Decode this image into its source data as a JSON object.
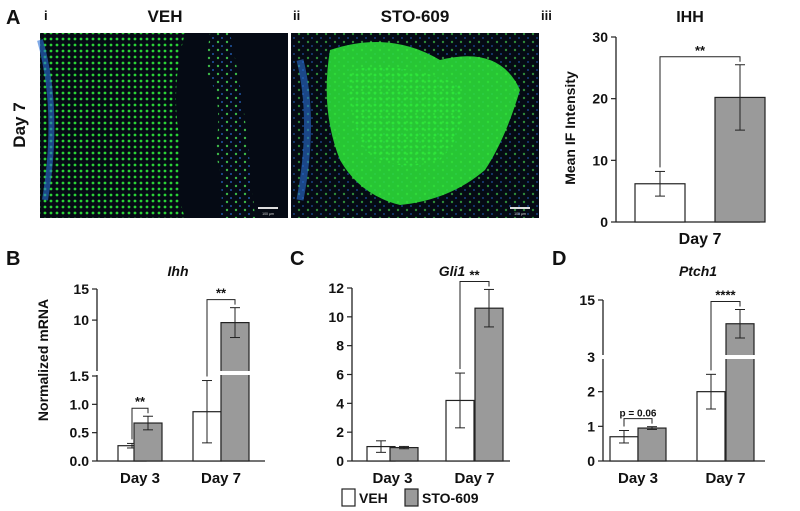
{
  "panels": {
    "A": {
      "letter": "A",
      "sub_i": "i",
      "sub_ii": "ii",
      "sub_iii": "iii",
      "row_label": "Day 7",
      "img_left_title": "VEH",
      "img_right_title": "STO-609",
      "scale_bar": "100 µm"
    },
    "B": {
      "letter": "B"
    },
    "C": {
      "letter": "C"
    },
    "D": {
      "letter": "D"
    }
  },
  "legend": {
    "veh": "VEH",
    "sto": "STO-609"
  },
  "colors": {
    "veh": "#ffffff",
    "sto": "#9a9a9a",
    "stroke": "#222222",
    "micro_bg": "#050a14",
    "micro_green": "#2ee83a",
    "micro_blue": "#2a6fd6"
  },
  "chart_data": [
    {
      "id": "A-iii",
      "type": "bar",
      "title": "IHH",
      "ylabel": "Mean IF Intensity",
      "categories": [
        "Day 7"
      ],
      "ylim": [
        0,
        30
      ],
      "yticks": [
        0,
        10,
        20,
        30
      ],
      "series": [
        {
          "name": "VEH",
          "values": [
            6.2
          ],
          "err": [
            2.0
          ]
        },
        {
          "name": "STO-609",
          "values": [
            20.2
          ],
          "err": [
            5.3
          ]
        }
      ],
      "significance": [
        {
          "category": "Day 7",
          "label": "**"
        }
      ]
    },
    {
      "id": "B",
      "type": "bar",
      "title": "Ihh",
      "ylabel": "Normalized mRNA",
      "axis_break": true,
      "categories": [
        "Day 3",
        "Day 7"
      ],
      "ytick_labels": [
        "0.0",
        "0.5",
        "1.0",
        "1.5",
        "10",
        "15"
      ],
      "series": [
        {
          "name": "VEH",
          "values": [
            0.27,
            0.87
          ],
          "err": [
            0.04,
            0.55
          ]
        },
        {
          "name": "STO-609",
          "values": [
            0.67,
            9.6
          ],
          "err": [
            0.12,
            2.4
          ]
        }
      ],
      "significance": [
        {
          "category": "Day 3",
          "label": "**"
        },
        {
          "category": "Day 7",
          "label": "**"
        }
      ]
    },
    {
      "id": "C",
      "type": "bar",
      "title": "Gli1",
      "categories": [
        "Day 3",
        "Day 7"
      ],
      "ylim": [
        0,
        12
      ],
      "yticks": [
        0,
        2,
        4,
        6,
        8,
        10,
        12
      ],
      "series": [
        {
          "name": "VEH",
          "values": [
            1.0,
            4.2
          ],
          "err": [
            0.4,
            1.9
          ]
        },
        {
          "name": "STO-609",
          "values": [
            0.93,
            10.6
          ],
          "err": [
            0.08,
            1.3
          ]
        }
      ],
      "significance": [
        {
          "category": "Day 7",
          "label": "**"
        }
      ]
    },
    {
      "id": "D",
      "type": "bar",
      "title": "Ptch1",
      "axis_break": true,
      "categories": [
        "Day 3",
        "Day 7"
      ],
      "ytick_labels": [
        "0",
        "1",
        "2",
        "3",
        "15"
      ],
      "series": [
        {
          "name": "VEH",
          "values": [
            0.7,
            2.0
          ],
          "err": [
            0.18,
            0.5
          ]
        },
        {
          "name": "STO-609",
          "values": [
            0.95,
            10.0
          ],
          "err": [
            0.04,
            3.0
          ]
        }
      ],
      "significance": [
        {
          "category": "Day 3",
          "label": "p = 0.06"
        },
        {
          "category": "Day 7",
          "label": "****"
        }
      ]
    }
  ]
}
